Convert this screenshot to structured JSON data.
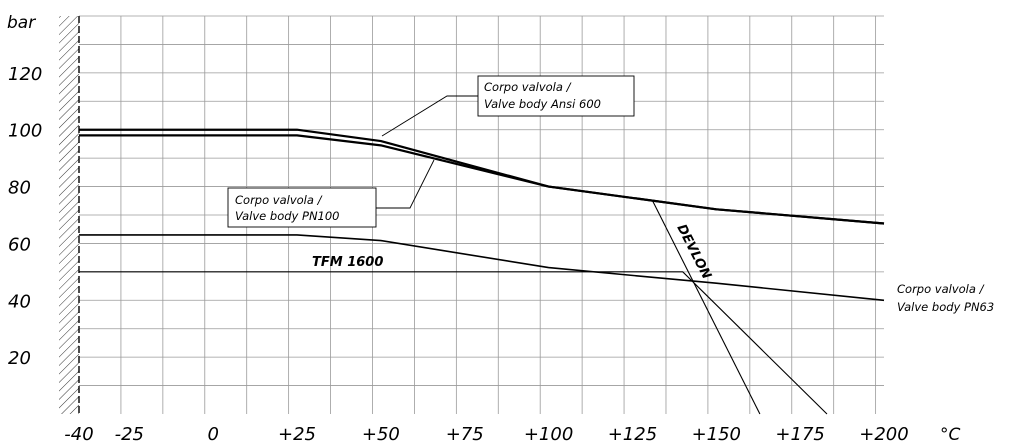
{
  "chart_data": {
    "type": "line",
    "x_unit": "°C",
    "y_unit": "bar",
    "x_ticks": [
      -40,
      -25,
      0,
      25,
      50,
      75,
      100,
      125,
      150,
      175,
      200
    ],
    "x_tick_labels": [
      "-40",
      "-25",
      "0",
      "+25",
      "+50",
      "+75",
      "+100",
      "+125",
      "+150",
      "+175",
      "+200"
    ],
    "y_ticks": [
      20,
      40,
      60,
      80,
      100,
      120
    ],
    "y_tick_labels": [
      "20",
      "40",
      "60",
      "80",
      "100",
      "120"
    ],
    "xlim": [
      -40,
      200
    ],
    "ylim": [
      0,
      140
    ],
    "grid": true,
    "series": [
      {
        "name": "Corpo valvola / Valve body Ansi 600",
        "label_lines": [
          "Corpo valvola /",
          "Valve body Ansi 600"
        ],
        "x": [
          -40,
          25,
          50,
          100,
          150,
          200
        ],
        "y": [
          100,
          100,
          96,
          80,
          72,
          67
        ],
        "style": "thick"
      },
      {
        "name": "Corpo valvola / Valve body PN100",
        "label_lines": [
          "Corpo valvola /",
          "Valve body PN100"
        ],
        "x": [
          -40,
          25,
          50,
          100,
          150,
          200
        ],
        "y": [
          98,
          98,
          94.5,
          80,
          72,
          67
        ],
        "style": "thick"
      },
      {
        "name": "Corpo valvola / Valve body PN63",
        "label_lines": [
          "Corpo valvola /",
          "Valve body PN63"
        ],
        "x": [
          -40,
          25,
          50,
          100,
          150,
          200
        ],
        "y": [
          63,
          63,
          61,
          51.5,
          46,
          40
        ],
        "style": "medium"
      },
      {
        "name": "TFM 1600",
        "label_lines": [
          "TFM 1600"
        ],
        "x": [
          -40,
          140,
          183
        ],
        "y": [
          50,
          50,
          0
        ],
        "style": "thin"
      },
      {
        "name": "DEVLON",
        "label_lines": [
          "DEVLON"
        ],
        "x": [
          131,
          163
        ],
        "y": [
          75,
          0
        ],
        "style": "thin"
      }
    ]
  }
}
